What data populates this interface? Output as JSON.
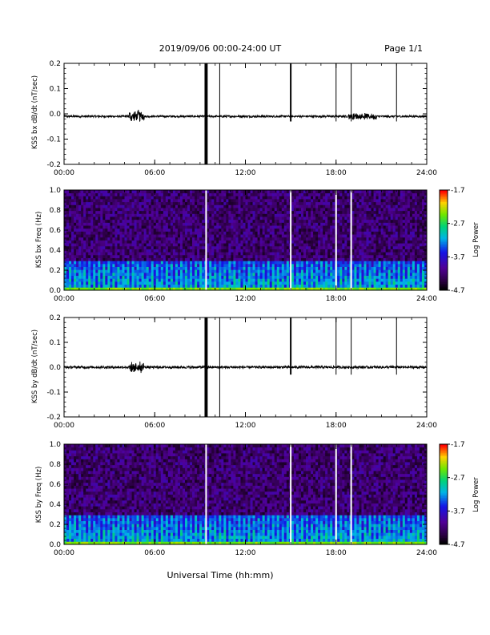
{
  "header": {
    "title": "2019/09/06  00:00-24:00 UT",
    "page": "Page 1/1"
  },
  "footer": {
    "xlabel": "Universal Time (hh:mm)"
  },
  "colors": {
    "background": "#ffffff",
    "trace": "#000000",
    "axis": "#000000",
    "gap": "#ffffff"
  },
  "chart_data": [
    {
      "type": "line",
      "ylabel": "KSS bx dB/dt (nT/sec)",
      "ylim": [
        -0.2,
        0.2
      ],
      "yticks": [
        "-0.2",
        "-0.1",
        "0.0",
        "0.1",
        "0.2"
      ],
      "xlim": [
        0,
        24
      ],
      "xticks": [
        "00:00",
        "06:00",
        "12:00",
        "18:00",
        "24:00"
      ],
      "baseline": -0.01,
      "noise_amplitude": 0.004,
      "bursts": [
        {
          "start": 4.3,
          "end": 5.3,
          "amp": 0.03
        },
        {
          "start": 18.8,
          "end": 20.7,
          "amp": 0.015
        }
      ],
      "spikes": [
        {
          "t": 9.35,
          "low": -0.2,
          "high": 0.2,
          "bold": true
        },
        {
          "t": 9.45,
          "low": -0.2,
          "high": 0.2,
          "bold": true
        },
        {
          "t": 10.3,
          "low": -0.2,
          "high": 0.2,
          "bold": false
        },
        {
          "t": 15.0,
          "low": -0.03,
          "high": 0.2,
          "bold": true
        },
        {
          "t": 18.0,
          "low": -0.03,
          "high": 0.2,
          "bold": false
        },
        {
          "t": 19.0,
          "low": -0.03,
          "high": 0.2,
          "bold": false
        },
        {
          "t": 22.0,
          "low": -0.03,
          "high": 0.2,
          "bold": false
        }
      ]
    },
    {
      "type": "heatmap",
      "ylabel": "KSS bx Freq (Hz)",
      "ylim": [
        0.0,
        1.0
      ],
      "yticks": [
        "0.0",
        "0.2",
        "0.4",
        "0.6",
        "0.8",
        "1.0"
      ],
      "xlim": [
        0,
        24
      ],
      "xticks": [
        "00:00",
        "06:00",
        "12:00",
        "18:00",
        "24:00"
      ],
      "data_gaps": [
        9.4,
        15.0,
        18.0,
        19.0
      ],
      "band_top_hz": 0.28,
      "colorbar": {
        "label": "Log Power",
        "ticks": [
          "-1.7",
          "-2.7",
          "-3.7",
          "-4.7"
        ],
        "range": [
          -4.7,
          -1.7
        ]
      }
    },
    {
      "type": "line",
      "ylabel": "KSS by dB/dt (nT/sec)",
      "ylim": [
        -0.2,
        0.2
      ],
      "yticks": [
        "-0.2",
        "-0.1",
        "0.0",
        "0.1",
        "0.2"
      ],
      "xlim": [
        0,
        24
      ],
      "xticks": [
        "00:00",
        "06:00",
        "12:00",
        "18:00",
        "24:00"
      ],
      "baseline": 0.0,
      "noise_amplitude": 0.005,
      "bursts": [
        {
          "start": 4.3,
          "end": 5.3,
          "amp": 0.025
        }
      ],
      "spikes": [
        {
          "t": 9.35,
          "low": -0.2,
          "high": 0.2,
          "bold": true
        },
        {
          "t": 9.45,
          "low": -0.2,
          "high": 0.2,
          "bold": true
        },
        {
          "t": 10.3,
          "low": -0.2,
          "high": 0.2,
          "bold": false
        },
        {
          "t": 15.0,
          "low": -0.03,
          "high": 0.2,
          "bold": true
        },
        {
          "t": 18.0,
          "low": -0.03,
          "high": 0.2,
          "bold": false
        },
        {
          "t": 19.0,
          "low": -0.03,
          "high": 0.2,
          "bold": false
        },
        {
          "t": 22.0,
          "low": -0.03,
          "high": 0.2,
          "bold": false
        }
      ]
    },
    {
      "type": "heatmap",
      "ylabel": "KSS by Freq (Hz)",
      "ylim": [
        0.0,
        1.0
      ],
      "yticks": [
        "0.0",
        "0.2",
        "0.4",
        "0.6",
        "0.8",
        "1.0"
      ],
      "xlim": [
        0,
        24
      ],
      "xticks": [
        "00:00",
        "06:00",
        "12:00",
        "18:00",
        "24:00"
      ],
      "data_gaps": [
        9.4,
        15.0,
        18.0,
        19.0
      ],
      "band_top_hz": 0.3,
      "colorbar": {
        "label": "Log Power",
        "ticks": [
          "-1.7",
          "-2.7",
          "-3.7",
          "-4.7"
        ],
        "range": [
          -4.7,
          -1.7
        ]
      }
    }
  ]
}
